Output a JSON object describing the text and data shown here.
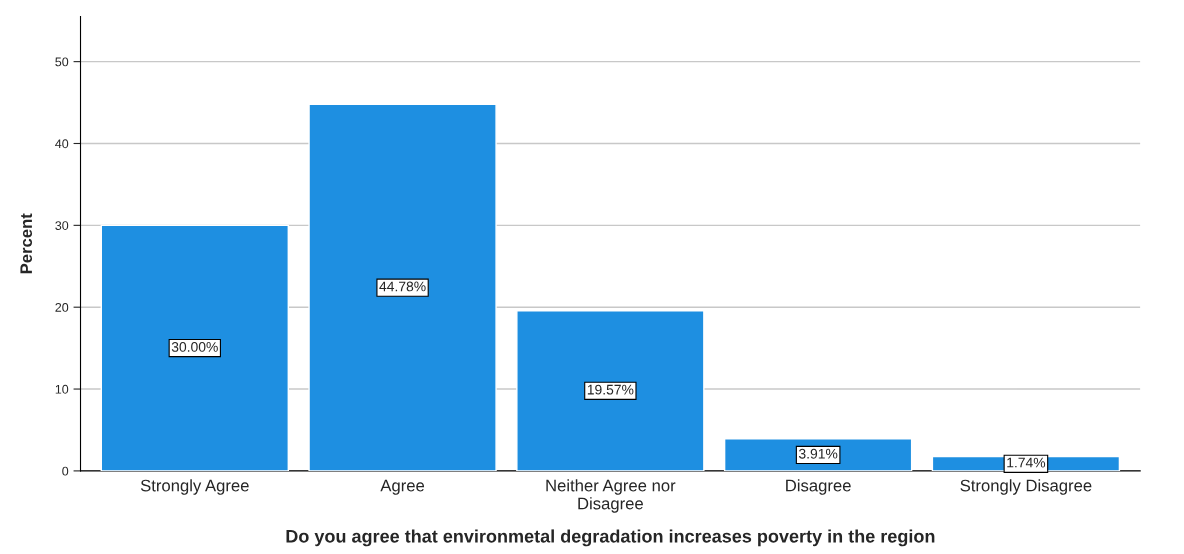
{
  "chart_data": {
    "type": "bar",
    "xlabel": "Do you agree that environmetal degradation increases poverty in the region",
    "ylabel": "Percent",
    "categories": [
      "Strongly Agree",
      "Agree",
      "Neither Agree nor\nDisagree",
      "Disagree",
      "Strongly Disagree"
    ],
    "values": [
      30.0,
      44.78,
      19.57,
      3.91,
      1.74
    ],
    "value_labels": [
      "30.00%",
      "44.78%",
      "19.57%",
      "3.91%",
      "1.74%"
    ],
    "color": "#1e8fe1",
    "ylim": [
      0,
      55.5
    ],
    "yticks": [
      0,
      10,
      20,
      30,
      40,
      50
    ],
    "grid": "y",
    "legend": false
  }
}
